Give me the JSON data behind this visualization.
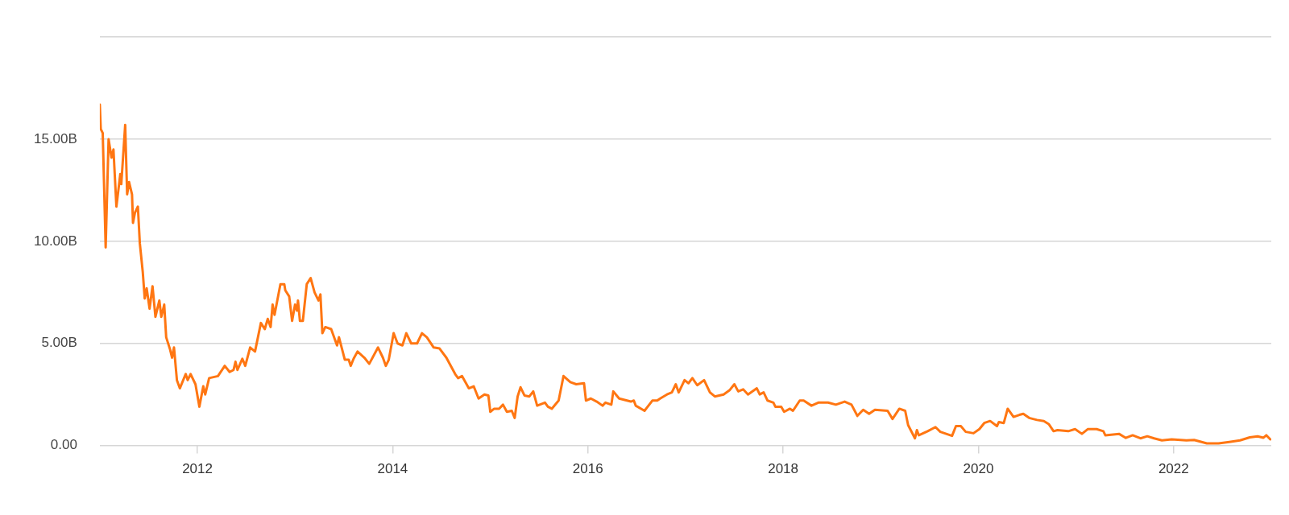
{
  "chart_data": {
    "type": "line",
    "grid": "y",
    "legend": false,
    "marker": "none",
    "line_style": "solid",
    "xlim": [
      2011,
      2023
    ],
    "xticks": [
      2012,
      2014,
      2016,
      2018,
      2020,
      2022
    ],
    "ylim": [
      0,
      20
    ],
    "yticks": [
      {
        "value": 0,
        "label": "0.00"
      },
      {
        "value": 5,
        "label": "5.00B"
      },
      {
        "value": 10,
        "label": "10.00B"
      },
      {
        "value": 15,
        "label": "15.00B"
      },
      {
        "value": 20,
        "label": null
      }
    ],
    "series": [
      {
        "color": "#ff7612",
        "x": [
          2011.0,
          2011.01,
          2011.03,
          2011.06,
          2011.09,
          2011.12,
          2011.14,
          2011.17,
          2011.21,
          2011.22,
          2011.26,
          2011.28,
          2011.3,
          2011.33,
          2011.34,
          2011.36,
          2011.39,
          2011.41,
          2011.44,
          2011.46,
          2011.48,
          2011.51,
          2011.54,
          2011.57,
          2011.61,
          2011.63,
          2011.66,
          2011.68,
          2011.72,
          2011.74,
          2011.76,
          2011.79,
          2011.82,
          2011.88,
          2011.9,
          2011.93,
          2011.98,
          2012.02,
          2012.06,
          2012.08,
          2012.12,
          2012.21,
          2012.28,
          2012.33,
          2012.37,
          2012.39,
          2012.41,
          2012.46,
          2012.49,
          2012.54,
          2012.59,
          2012.65,
          2012.69,
          2012.72,
          2012.75,
          2012.77,
          2012.79,
          2012.85,
          2012.89,
          2012.9,
          2012.94,
          2012.97,
          2013.0,
          2013.02,
          2013.03,
          2013.05,
          2013.08,
          2013.12,
          2013.16,
          2013.2,
          2013.24,
          2013.26,
          2013.28,
          2013.31,
          2013.37,
          2013.43,
          2013.45,
          2013.51,
          2013.55,
          2013.57,
          2013.6,
          2013.64,
          2013.71,
          2013.76,
          2013.85,
          2013.9,
          2013.93,
          2013.96,
          2014.01,
          2014.05,
          2014.1,
          2014.14,
          2014.19,
          2014.25,
          2014.3,
          2014.35,
          2014.42,
          2014.48,
          2014.55,
          2014.64,
          2014.67,
          2014.71,
          2014.78,
          2014.83,
          2014.88,
          2014.94,
          2014.98,
          2015.0,
          2015.04,
          2015.09,
          2015.13,
          2015.17,
          2015.22,
          2015.25,
          2015.28,
          2015.31,
          2015.35,
          2015.4,
          2015.44,
          2015.48,
          2015.56,
          2015.59,
          2015.63,
          2015.7,
          2015.75,
          2015.82,
          2015.88,
          2015.96,
          2015.98,
          2016.03,
          2016.09,
          2016.15,
          2016.18,
          2016.24,
          2016.26,
          2016.32,
          2016.44,
          2016.47,
          2016.49,
          2016.58,
          2016.66,
          2016.71,
          2016.74,
          2016.81,
          2016.86,
          2016.9,
          2016.93,
          2016.99,
          2017.03,
          2017.07,
          2017.12,
          2017.19,
          2017.25,
          2017.3,
          2017.39,
          2017.45,
          2017.5,
          2017.54,
          2017.59,
          2017.64,
          2017.73,
          2017.76,
          2017.8,
          2017.84,
          2017.9,
          2017.92,
          2017.98,
          2018.01,
          2018.07,
          2018.1,
          2018.17,
          2018.21,
          2018.29,
          2018.36,
          2018.46,
          2018.54,
          2018.63,
          2018.7,
          2018.76,
          2018.82,
          2018.88,
          2018.94,
          2019.07,
          2019.12,
          2019.19,
          2019.25,
          2019.28,
          2019.35,
          2019.37,
          2019.39,
          2019.48,
          2019.56,
          2019.61,
          2019.73,
          2019.77,
          2019.82,
          2019.87,
          2019.95,
          2020.01,
          2020.06,
          2020.12,
          2020.19,
          2020.21,
          2020.26,
          2020.3,
          2020.36,
          2020.42,
          2020.46,
          2020.52,
          2020.6,
          2020.67,
          2020.72,
          2020.77,
          2020.81,
          2020.92,
          2020.99,
          2021.06,
          2021.12,
          2021.21,
          2021.28,
          2021.3,
          2021.44,
          2021.51,
          2021.58,
          2021.66,
          2021.73,
          2021.8,
          2021.88,
          2021.98,
          2022.13,
          2022.21,
          2022.34,
          2022.46,
          2022.57,
          2022.68,
          2022.78,
          2022.86,
          2022.92,
          2022.95,
          2022.99
        ],
        "values": [
          16.7,
          15.5,
          15.3,
          9.7,
          15.0,
          14.1,
          14.5,
          11.7,
          13.3,
          12.8,
          15.7,
          12.3,
          12.9,
          12.3,
          10.9,
          11.4,
          11.7,
          9.9,
          8.5,
          7.2,
          7.7,
          6.7,
          7.8,
          6.3,
          7.1,
          6.3,
          6.9,
          5.3,
          4.7,
          4.3,
          4.8,
          3.2,
          2.8,
          3.5,
          3.2,
          3.5,
          3.0,
          1.9,
          2.9,
          2.5,
          3.3,
          3.4,
          3.9,
          3.6,
          3.7,
          4.1,
          3.7,
          4.25,
          3.9,
          4.8,
          4.6,
          6.0,
          5.7,
          6.2,
          5.8,
          6.9,
          6.4,
          7.9,
          7.9,
          7.6,
          7.3,
          6.1,
          6.9,
          6.6,
          7.1,
          6.1,
          6.1,
          7.9,
          8.2,
          7.5,
          7.1,
          7.4,
          5.5,
          5.8,
          5.7,
          4.9,
          5.3,
          4.2,
          4.2,
          3.9,
          4.25,
          4.6,
          4.3,
          4.0,
          4.8,
          4.3,
          3.9,
          4.2,
          5.5,
          5.0,
          4.9,
          5.5,
          5.0,
          5.0,
          5.5,
          5.3,
          4.8,
          4.75,
          4.3,
          3.5,
          3.3,
          3.4,
          2.8,
          2.9,
          2.3,
          2.5,
          2.45,
          1.65,
          1.8,
          1.8,
          2.0,
          1.65,
          1.7,
          1.35,
          2.4,
          2.85,
          2.45,
          2.4,
          2.65,
          1.95,
          2.1,
          1.9,
          1.8,
          2.2,
          3.4,
          3.1,
          3.0,
          3.05,
          2.2,
          2.3,
          2.15,
          1.95,
          2.1,
          2.0,
          2.65,
          2.3,
          2.15,
          2.2,
          1.95,
          1.7,
          2.2,
          2.2,
          2.3,
          2.5,
          2.6,
          3.0,
          2.6,
          3.2,
          3.05,
          3.3,
          2.95,
          3.2,
          2.6,
          2.4,
          2.5,
          2.7,
          3.0,
          2.65,
          2.75,
          2.5,
          2.8,
          2.5,
          2.6,
          2.2,
          2.1,
          1.9,
          1.9,
          1.65,
          1.8,
          1.7,
          2.2,
          2.2,
          1.95,
          2.1,
          2.1,
          2.0,
          2.15,
          2.0,
          1.45,
          1.75,
          1.55,
          1.75,
          1.7,
          1.3,
          1.8,
          1.7,
          1.0,
          0.35,
          0.75,
          0.5,
          0.7,
          0.9,
          0.67,
          0.47,
          0.95,
          0.95,
          0.67,
          0.6,
          0.8,
          1.1,
          1.2,
          0.95,
          1.15,
          1.1,
          1.8,
          1.4,
          1.5,
          1.55,
          1.35,
          1.25,
          1.2,
          1.05,
          0.7,
          0.75,
          0.7,
          0.8,
          0.57,
          0.8,
          0.8,
          0.7,
          0.5,
          0.57,
          0.37,
          0.5,
          0.35,
          0.45,
          0.35,
          0.25,
          0.3,
          0.25,
          0.27,
          0.1,
          0.1,
          0.17,
          0.25,
          0.4,
          0.45,
          0.38,
          0.5,
          0.3
        ]
      }
    ]
  }
}
